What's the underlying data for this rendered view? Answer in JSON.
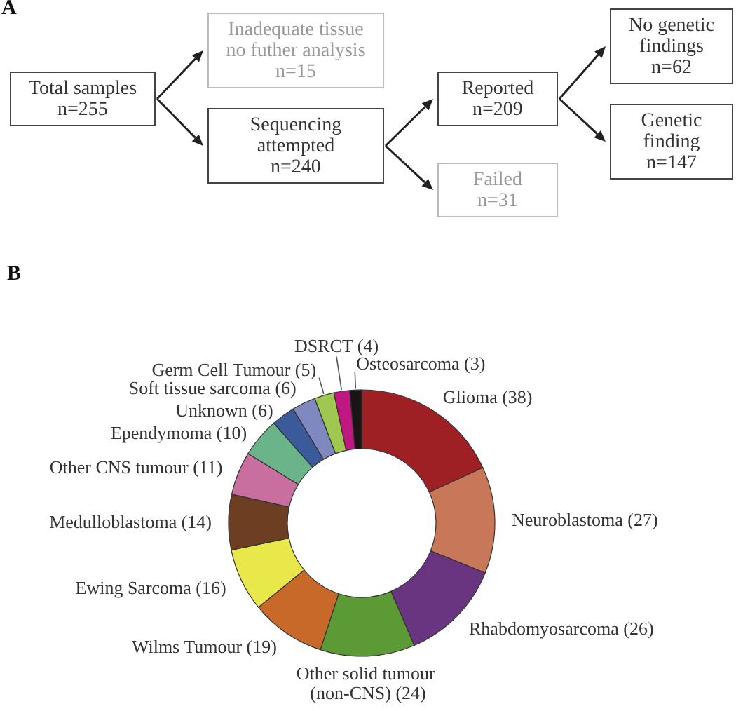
{
  "chart_data": [
    {
      "type": "other",
      "title": "A",
      "annotations": [
        "Total samples\nn=255",
        "Inadequate tissue\nno futher analysis\nn=15",
        "Sequencing\nattempted\nn=240",
        "Reported\nn=209",
        "Failed\nn=31",
        "No genetic\nfindings\nn=62",
        "Genetic\nfinding\nn=147"
      ]
    },
    {
      "type": "donut",
      "title": "B",
      "categories": [
        "Glioma",
        "Neuroblastoma",
        "Rhabdomyosarcoma",
        "Other solid tumour (non-CNS)",
        "Wilms Tumour",
        "Ewing Sarcoma",
        "Medulloblastoma",
        "Other CNS tumour",
        "Ependymoma",
        "Unknown",
        "Soft tissue sarcoma",
        "Germ Cell Tumour",
        "DSRCT",
        "Osteosarcoma"
      ],
      "values": [
        38,
        27,
        26,
        24,
        19,
        16,
        14,
        11,
        10,
        6,
        6,
        5,
        4,
        3
      ],
      "value_labels": [
        "(38)",
        "(27)",
        "(26)",
        "(24)",
        "(19)",
        "(16)",
        "(14)",
        "(11)",
        "(10)",
        "(6)",
        "(6)",
        "(5)",
        "(4)",
        "(3)"
      ],
      "colors": [
        "#9e1f24",
        "#c87858",
        "#6a3580",
        "#5c9a36",
        "#c8692a",
        "#e8e84a",
        "#6e3e22",
        "#c86fa0",
        "#6bb48a",
        "#3a5a9c",
        "#8088c0",
        "#a0c850",
        "#c01880",
        "#1a1414"
      ]
    }
  ]
}
